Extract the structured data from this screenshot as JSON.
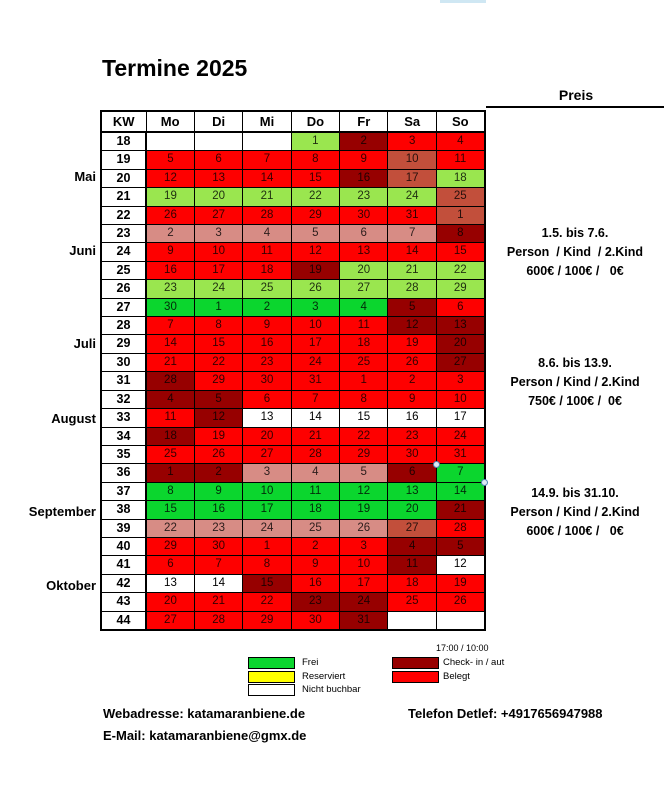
{
  "title": "Termine 2025",
  "table": {
    "headers": [
      "KW",
      "Mo",
      "Di",
      "Mi",
      "Do",
      "Fr",
      "Sa",
      "So"
    ],
    "weeks": [
      {
        "kw": 18,
        "cells": [
          [
            "",
            "blocked"
          ],
          [
            "",
            "blocked"
          ],
          [
            "",
            "blocked"
          ],
          [
            "1",
            "free_light"
          ],
          [
            "2",
            "checkin"
          ],
          [
            "3",
            "occupied"
          ],
          [
            "4",
            "occupied"
          ]
        ]
      },
      {
        "kw": 19,
        "cells": [
          [
            "5",
            "occupied"
          ],
          [
            "6",
            "occupied"
          ],
          [
            "7",
            "occupied"
          ],
          [
            "8",
            "occupied"
          ],
          [
            "9",
            "occupied"
          ],
          [
            "10",
            "brick"
          ],
          [
            "11",
            "occupied"
          ]
        ]
      },
      {
        "kw": 20,
        "cells": [
          [
            "12",
            "occupied"
          ],
          [
            "13",
            "occupied"
          ],
          [
            "14",
            "occupied"
          ],
          [
            "15",
            "occupied"
          ],
          [
            "16",
            "checkin"
          ],
          [
            "17",
            "brick"
          ],
          [
            "18",
            "free_light"
          ]
        ]
      },
      {
        "kw": 21,
        "cells": [
          [
            "19",
            "free_light"
          ],
          [
            "20",
            "free_light"
          ],
          [
            "21",
            "free_light"
          ],
          [
            "22",
            "free_light"
          ],
          [
            "23",
            "free_light"
          ],
          [
            "24",
            "free_light"
          ],
          [
            "25",
            "brick"
          ]
        ]
      },
      {
        "kw": 22,
        "cells": [
          [
            "26",
            "occupied"
          ],
          [
            "27",
            "occupied"
          ],
          [
            "28",
            "occupied"
          ],
          [
            "29",
            "occupied"
          ],
          [
            "30",
            "occupied"
          ],
          [
            "31",
            "occupied"
          ],
          [
            "1",
            "brick"
          ]
        ]
      },
      {
        "kw": 23,
        "cells": [
          [
            "2",
            "salmon"
          ],
          [
            "3",
            "salmon"
          ],
          [
            "4",
            "salmon"
          ],
          [
            "5",
            "salmon"
          ],
          [
            "6",
            "salmon"
          ],
          [
            "7",
            "salmon"
          ],
          [
            "8",
            "checkin"
          ]
        ]
      },
      {
        "kw": 24,
        "cells": [
          [
            "9",
            "occupied"
          ],
          [
            "10",
            "occupied"
          ],
          [
            "11",
            "occupied"
          ],
          [
            "12",
            "occupied"
          ],
          [
            "13",
            "occupied"
          ],
          [
            "14",
            "occupied"
          ],
          [
            "15",
            "occupied"
          ]
        ]
      },
      {
        "kw": 25,
        "cells": [
          [
            "16",
            "occupied"
          ],
          [
            "17",
            "occupied"
          ],
          [
            "18",
            "occupied"
          ],
          [
            "19",
            "checkin"
          ],
          [
            "20",
            "free_light"
          ],
          [
            "21",
            "free_light"
          ],
          [
            "22",
            "free_light"
          ]
        ]
      },
      {
        "kw": 26,
        "cells": [
          [
            "23",
            "free_light"
          ],
          [
            "24",
            "free_light"
          ],
          [
            "25",
            "free_light"
          ],
          [
            "26",
            "free_light"
          ],
          [
            "27",
            "free_light"
          ],
          [
            "28",
            "free_light"
          ],
          [
            "29",
            "free_light"
          ]
        ]
      },
      {
        "kw": 27,
        "cells": [
          [
            "30",
            "free"
          ],
          [
            "1",
            "free"
          ],
          [
            "2",
            "free"
          ],
          [
            "3",
            "free"
          ],
          [
            "4",
            "free"
          ],
          [
            "5",
            "checkin"
          ],
          [
            "6",
            "occupied"
          ]
        ]
      },
      {
        "kw": 28,
        "cells": [
          [
            "7",
            "occupied"
          ],
          [
            "8",
            "occupied"
          ],
          [
            "9",
            "occupied"
          ],
          [
            "10",
            "occupied"
          ],
          [
            "11",
            "occupied"
          ],
          [
            "12",
            "checkin"
          ],
          [
            "13",
            "checkin"
          ]
        ]
      },
      {
        "kw": 29,
        "cells": [
          [
            "14",
            "occupied"
          ],
          [
            "15",
            "occupied"
          ],
          [
            "16",
            "occupied"
          ],
          [
            "17",
            "occupied"
          ],
          [
            "18",
            "occupied"
          ],
          [
            "19",
            "occupied"
          ],
          [
            "20",
            "checkin"
          ]
        ]
      },
      {
        "kw": 30,
        "cells": [
          [
            "21",
            "occupied"
          ],
          [
            "22",
            "occupied"
          ],
          [
            "23",
            "occupied"
          ],
          [
            "24",
            "occupied"
          ],
          [
            "25",
            "occupied"
          ],
          [
            "26",
            "occupied"
          ],
          [
            "27",
            "checkin"
          ]
        ]
      },
      {
        "kw": 31,
        "cells": [
          [
            "28",
            "checkin"
          ],
          [
            "29",
            "occupied"
          ],
          [
            "30",
            "occupied"
          ],
          [
            "31",
            "occupied"
          ],
          [
            "1",
            "occupied"
          ],
          [
            "2",
            "occupied"
          ],
          [
            "3",
            "occupied"
          ]
        ]
      },
      {
        "kw": 32,
        "cells": [
          [
            "4",
            "checkin"
          ],
          [
            "5",
            "checkin"
          ],
          [
            "6",
            "occupied"
          ],
          [
            "7",
            "occupied"
          ],
          [
            "8",
            "occupied"
          ],
          [
            "9",
            "occupied"
          ],
          [
            "10",
            "occupied"
          ]
        ]
      },
      {
        "kw": 33,
        "cells": [
          [
            "11",
            "occupied"
          ],
          [
            "12",
            "checkin"
          ],
          [
            "13",
            "blocked"
          ],
          [
            "14",
            "blocked"
          ],
          [
            "15",
            "blocked"
          ],
          [
            "16",
            "blocked"
          ],
          [
            "17",
            "blocked"
          ]
        ]
      },
      {
        "kw": 34,
        "cells": [
          [
            "18",
            "checkin"
          ],
          [
            "19",
            "occupied"
          ],
          [
            "20",
            "occupied"
          ],
          [
            "21",
            "occupied"
          ],
          [
            "22",
            "occupied"
          ],
          [
            "23",
            "occupied"
          ],
          [
            "24",
            "occupied"
          ]
        ]
      },
      {
        "kw": 35,
        "cells": [
          [
            "25",
            "occupied"
          ],
          [
            "26",
            "occupied"
          ],
          [
            "27",
            "occupied"
          ],
          [
            "28",
            "occupied"
          ],
          [
            "29",
            "occupied"
          ],
          [
            "30",
            "occupied"
          ],
          [
            "31",
            "occupied"
          ]
        ]
      },
      {
        "kw": 36,
        "cells": [
          [
            "1",
            "checkin"
          ],
          [
            "2",
            "checkin"
          ],
          [
            "3",
            "salmon"
          ],
          [
            "4",
            "salmon"
          ],
          [
            "5",
            "salmon"
          ],
          [
            "6",
            "checkin"
          ],
          [
            "7",
            "free"
          ]
        ]
      },
      {
        "kw": 37,
        "cells": [
          [
            "8",
            "free"
          ],
          [
            "9",
            "free"
          ],
          [
            "10",
            "free"
          ],
          [
            "11",
            "free"
          ],
          [
            "12",
            "free"
          ],
          [
            "13",
            "free"
          ],
          [
            "14",
            "free"
          ]
        ]
      },
      {
        "kw": 38,
        "cells": [
          [
            "15",
            "free"
          ],
          [
            "16",
            "free"
          ],
          [
            "17",
            "free"
          ],
          [
            "18",
            "free"
          ],
          [
            "19",
            "free"
          ],
          [
            "20",
            "free"
          ],
          [
            "21",
            "checkin"
          ]
        ]
      },
      {
        "kw": 39,
        "cells": [
          [
            "22",
            "salmon"
          ],
          [
            "23",
            "salmon"
          ],
          [
            "24",
            "salmon"
          ],
          [
            "25",
            "salmon"
          ],
          [
            "26",
            "salmon"
          ],
          [
            "27",
            "brick"
          ],
          [
            "28",
            "occupied"
          ]
        ]
      },
      {
        "kw": 40,
        "cells": [
          [
            "29",
            "occupied"
          ],
          [
            "30",
            "occupied"
          ],
          [
            "1",
            "occupied"
          ],
          [
            "2",
            "occupied"
          ],
          [
            "3",
            "occupied"
          ],
          [
            "4",
            "checkin"
          ],
          [
            "5",
            "checkin"
          ]
        ]
      },
      {
        "kw": 41,
        "cells": [
          [
            "6",
            "occupied"
          ],
          [
            "7",
            "occupied"
          ],
          [
            "8",
            "occupied"
          ],
          [
            "9",
            "occupied"
          ],
          [
            "10",
            "occupied"
          ],
          [
            "11",
            "checkin"
          ],
          [
            "12",
            "blocked"
          ]
        ]
      },
      {
        "kw": 42,
        "cells": [
          [
            "13",
            "blocked"
          ],
          [
            "14",
            "blocked"
          ],
          [
            "15",
            "checkin"
          ],
          [
            "16",
            "occupied"
          ],
          [
            "17",
            "occupied"
          ],
          [
            "18",
            "occupied"
          ],
          [
            "19",
            "occupied"
          ]
        ]
      },
      {
        "kw": 43,
        "cells": [
          [
            "20",
            "occupied"
          ],
          [
            "21",
            "occupied"
          ],
          [
            "22",
            "occupied"
          ],
          [
            "23",
            "checkin"
          ],
          [
            "24",
            "checkin"
          ],
          [
            "25",
            "occupied"
          ],
          [
            "26",
            "occupied"
          ]
        ]
      },
      {
        "kw": 44,
        "cells": [
          [
            "27",
            "occupied"
          ],
          [
            "28",
            "occupied"
          ],
          [
            "29",
            "occupied"
          ],
          [
            "30",
            "occupied"
          ],
          [
            "31",
            "checkin"
          ],
          [
            "",
            "blocked"
          ],
          [
            "",
            "blocked"
          ]
        ]
      }
    ]
  },
  "months": [
    {
      "label": "Mai",
      "kw": 20
    },
    {
      "label": "Juni",
      "kw": 24
    },
    {
      "label": "Juli",
      "kw": 29
    },
    {
      "label": "August",
      "kw": 33
    },
    {
      "label": "September",
      "kw": 38
    },
    {
      "label": "Oktober",
      "kw": 42
    }
  ],
  "price": {
    "heading": "Preis",
    "blocks": [
      {
        "period": "1.5. bis 7.6.",
        "persons": "Person  / Kind  / 2.Kind",
        "prices": "600€ / 100€ /   0€"
      },
      {
        "period": "8.6. bis 13.9.",
        "persons": "Person / Kind / 2.Kind",
        "prices": "750€ / 100€ /  0€"
      },
      {
        "period": "14.9. bis 31.10.",
        "persons": "Person / Kind / 2.Kind",
        "prices": "600€ / 100€ /   0€"
      }
    ]
  },
  "legend": {
    "times": "17:00  /  10:00",
    "items_left": [
      {
        "label": "Frei",
        "color_key": "free"
      },
      {
        "label": "Reserviert",
        "color_key": "reserved"
      },
      {
        "label": "Nicht buchbar",
        "color_key": "blocked"
      }
    ],
    "items_right": [
      {
        "label": "Check- in / aut",
        "color_key": "checkin"
      },
      {
        "label": "Belegt",
        "color_key": "occupied"
      }
    ]
  },
  "footer": {
    "web": "Webadresse: katamaranbiene.de",
    "email": "E-Mail: katamaranbiene@gmx.de",
    "phone": "Telefon Detlef: +4917656947988"
  },
  "colors": {
    "free": "#0bd62e",
    "free_light": "#9ae64f",
    "occupied": "#fe0000",
    "checkin": "#970000",
    "brick": "#c24f3b",
    "salmon": "#d78c85",
    "reserved": "#ffff00",
    "blocked": "#ffffff"
  }
}
